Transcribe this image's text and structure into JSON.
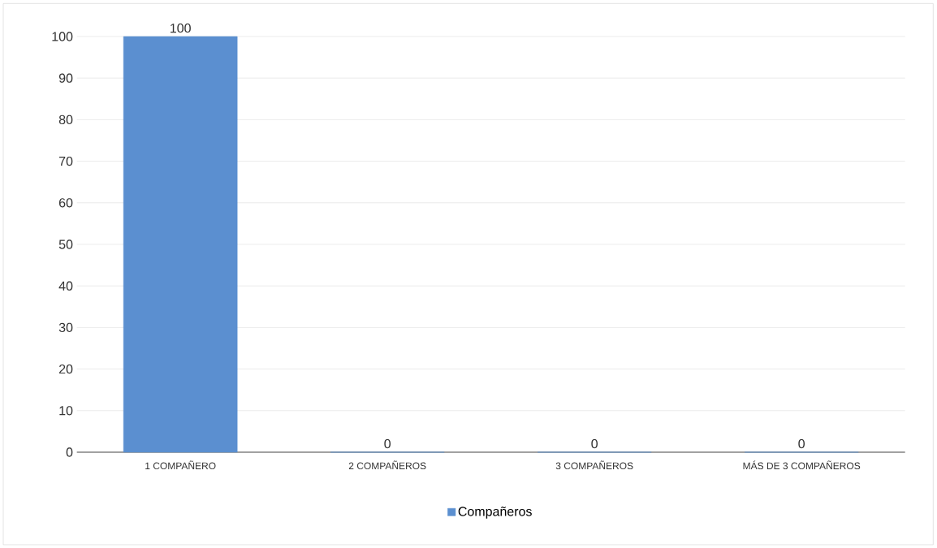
{
  "chart_data": {
    "type": "bar",
    "categories": [
      "1 COMPAÑERO",
      "2 COMPAÑEROS",
      "3 COMPAÑEROS",
      "MÁS DE 3 COMPAÑEROS"
    ],
    "series": [
      {
        "name": "Compañeros",
        "color": "#5b8fd0",
        "values": [
          100,
          0,
          0,
          0
        ]
      }
    ],
    "ylim": [
      0,
      100
    ],
    "yticks": [
      0,
      10,
      20,
      30,
      40,
      50,
      60,
      70,
      80,
      90,
      100
    ],
    "grid": "y",
    "data_labels": true,
    "legend": "bottom"
  }
}
